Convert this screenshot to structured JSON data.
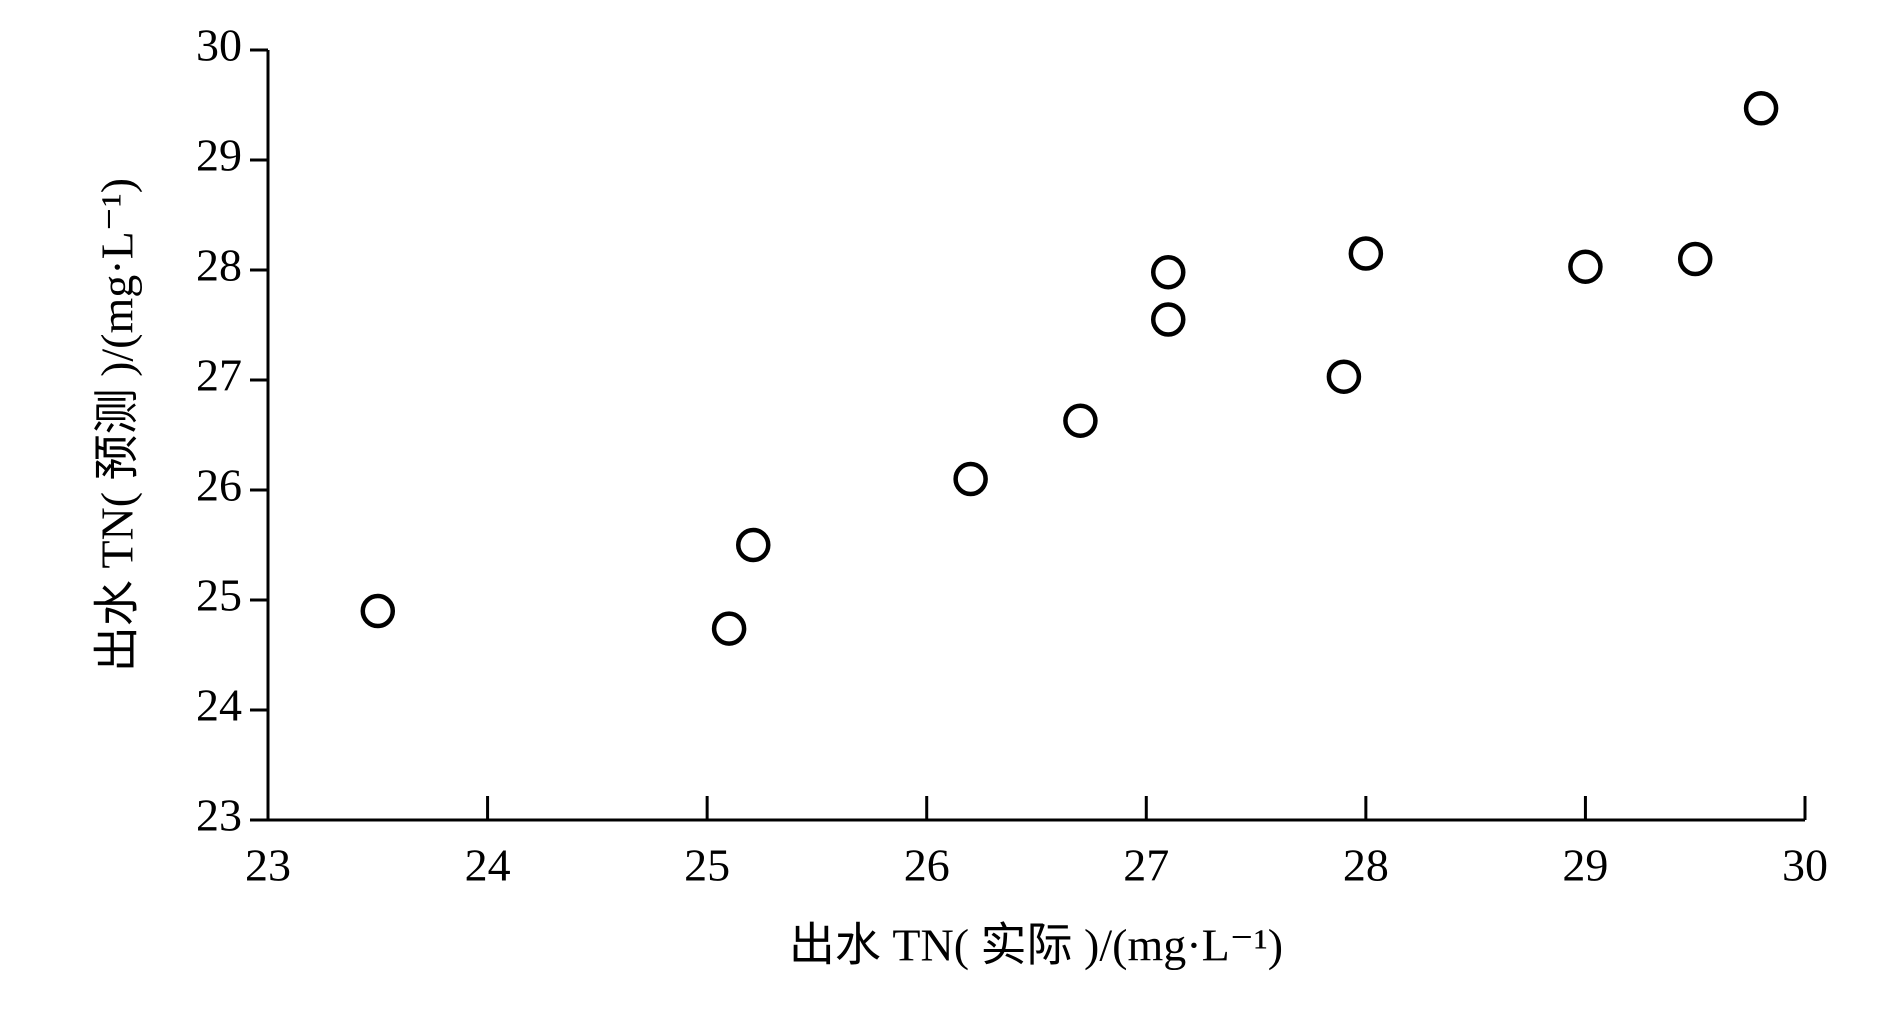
{
  "chart_data": {
    "type": "scatter",
    "x_label": "出水 TN( 实际 )/(mg·L⁻¹)",
    "y_label": "出水 TN( 预测 )/(mg·L⁻¹)",
    "x": [
      23.5,
      25.1,
      25.21,
      26.2,
      26.7,
      27.1,
      27.1,
      27.9,
      28.0,
      29.0,
      29.5,
      29.8
    ],
    "values": [
      24.9,
      24.74,
      25.5,
      26.1,
      26.63,
      27.98,
      27.55,
      27.03,
      28.15,
      28.03,
      28.1,
      29.47
    ],
    "color": "#000000",
    "xlim": [
      23,
      30
    ],
    "xticks": [
      23,
      24,
      25,
      26,
      27,
      28,
      29,
      30
    ],
    "ylim": [
      23,
      30
    ],
    "yticks": [
      23,
      24,
      25,
      26,
      27,
      28,
      29,
      30
    ],
    "grid": false
  }
}
